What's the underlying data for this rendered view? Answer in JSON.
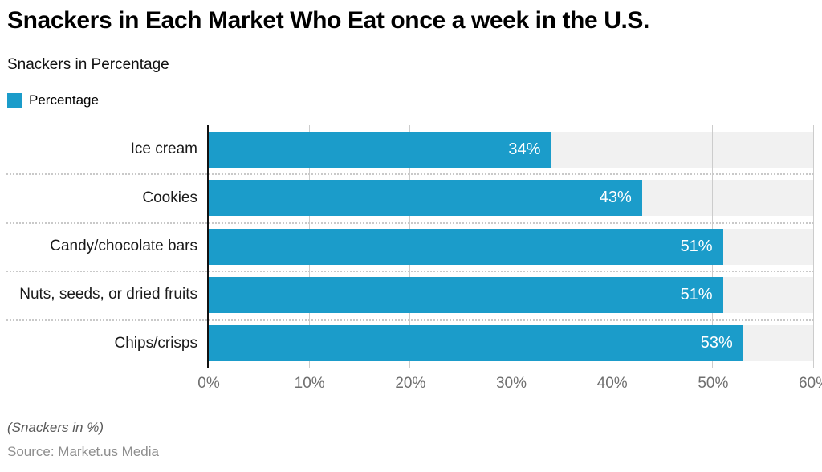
{
  "header": {
    "title": "Snackers in Each Market Who Eat once a week in the U.S.",
    "subtitle": "Snackers in Percentage"
  },
  "legend": {
    "label": "Percentage"
  },
  "chart_data": {
    "type": "bar",
    "orientation": "horizontal",
    "title": "Snackers in Each Market Who Eat once a week in the U.S.",
    "subtitle": "Snackers in Percentage",
    "series_name": "Percentage",
    "categories": [
      "Ice cream",
      "Cookies",
      "Candy/chocolate bars",
      "Nuts, seeds, or dried fruits",
      "Chips/crisps"
    ],
    "values": [
      34,
      43,
      51,
      51,
      53
    ],
    "value_labels": [
      "34%",
      "43%",
      "51%",
      "51%",
      "53%"
    ],
    "x_ticks": [
      "0%",
      "10%",
      "20%",
      "30%",
      "40%",
      "50%",
      "60%"
    ],
    "xlim": [
      0,
      60
    ],
    "grid": true,
    "legend_position": "top-left",
    "colors": {
      "bar": "#1b9cca",
      "track_background": "#f1f1f1",
      "gridline": "#cccccc",
      "separator": "#c9c9c9",
      "axis_line": "#111111",
      "tick_text": "#6f6f6f",
      "value_label_text": "#ffffff"
    }
  },
  "footer": {
    "note": "(Snackers in %)",
    "source": "Source: Market.us Media"
  }
}
